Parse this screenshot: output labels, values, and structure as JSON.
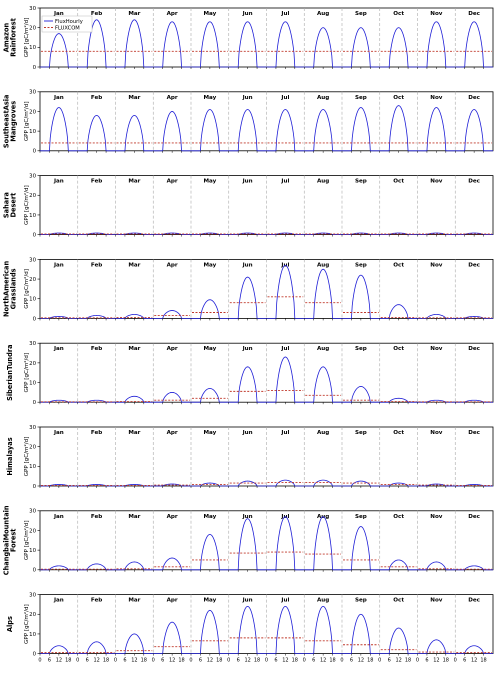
{
  "chart_data": {
    "type": "line",
    "ylabel": "GPP [gC/m²/d]",
    "ylim": [
      0,
      30
    ],
    "yticks": [
      0,
      10,
      20,
      30
    ],
    "months": [
      "Jan",
      "Feb",
      "Mar",
      "Apr",
      "May",
      "Jun",
      "Jul",
      "Aug",
      "Sep",
      "Oct",
      "Nov",
      "Dec"
    ],
    "hour_ticks": [
      "0",
      "6",
      "12",
      "18"
    ],
    "legend": {
      "placement": "top-left",
      "entries": [
        {
          "name": "FluxHourly",
          "color": "#1f1fd6",
          "style": "solid"
        },
        {
          "name": "FLUXCOM",
          "color": "#c0392b",
          "style": "dashed"
        }
      ]
    },
    "grid": "vertical dashed lines at month boundaries",
    "rows": [
      {
        "label_lines": [
          "Amazon",
          "Rainforest"
        ],
        "hourly_peak": [
          17,
          24,
          24,
          23,
          23,
          23,
          23,
          20,
          20,
          20,
          23,
          23
        ],
        "fluxcom": [
          8,
          8,
          8,
          8,
          8,
          8,
          8,
          8,
          8,
          8,
          8,
          8
        ]
      },
      {
        "label_lines": [
          "SoutheastAsia",
          "Mangroves"
        ],
        "hourly_peak": [
          22,
          18,
          18,
          20,
          21,
          21,
          21,
          21,
          22,
          23,
          22,
          21
        ],
        "fluxcom": [
          4,
          4,
          4,
          4,
          4,
          4,
          4,
          4,
          4,
          4,
          4,
          4
        ]
      },
      {
        "label_lines": [
          "Sahara",
          "Desert"
        ],
        "hourly_peak": [
          0.8,
          0.8,
          0.8,
          0.8,
          0.8,
          0.8,
          0.8,
          0.8,
          0.8,
          0.8,
          0.8,
          0.8
        ],
        "fluxcom": [
          0.3,
          0.3,
          0.3,
          0.3,
          0.3,
          0.3,
          0.3,
          0.3,
          0.3,
          0.3,
          0.3,
          0.3
        ]
      },
      {
        "label_lines": [
          "NorthAmerican",
          "Grasslands"
        ],
        "hourly_peak": [
          1,
          1.5,
          2,
          4,
          9.5,
          21,
          27,
          25,
          22,
          7,
          2,
          1
        ],
        "fluxcom": [
          0.3,
          0.3,
          0.5,
          1.5,
          3,
          8,
          11,
          8,
          3,
          0.5,
          0.3,
          0.3
        ]
      },
      {
        "label_lines": [
          "SiberianTundra"
        ],
        "hourly_peak": [
          1,
          1,
          3,
          5,
          7,
          18,
          23,
          18,
          8,
          2,
          1,
          1
        ],
        "fluxcom": [
          0.2,
          0.2,
          0.3,
          1,
          2,
          5.5,
          6,
          3.5,
          1,
          0.3,
          0.2,
          0.2
        ]
      },
      {
        "label_lines": [
          "Himalayas"
        ],
        "hourly_peak": [
          0.8,
          0.8,
          0.8,
          1,
          1.5,
          2.5,
          3,
          3,
          2.5,
          1.5,
          1,
          0.8
        ],
        "fluxcom": [
          0.3,
          0.3,
          0.3,
          0.5,
          0.8,
          1.5,
          1.8,
          1.8,
          1.5,
          0.8,
          0.5,
          0.3
        ]
      },
      {
        "label_lines": [
          "ChangbaiMountain",
          "Forest"
        ],
        "hourly_peak": [
          2,
          3,
          4,
          6,
          18,
          26,
          27,
          27,
          22,
          5,
          4,
          2
        ],
        "fluxcom": [
          0.3,
          0.3,
          0.5,
          1.5,
          5,
          8.5,
          9,
          8,
          5,
          1.5,
          0.5,
          0.3
        ]
      },
      {
        "label_lines": [
          "Alps"
        ],
        "hourly_peak": [
          4,
          6,
          10,
          16,
          22,
          24,
          24,
          24,
          20,
          13,
          7,
          4
        ],
        "fluxcom": [
          0.5,
          0.5,
          1.5,
          3.5,
          6.5,
          8,
          8,
          6.5,
          4.5,
          2,
          0.8,
          0.5
        ]
      }
    ]
  }
}
